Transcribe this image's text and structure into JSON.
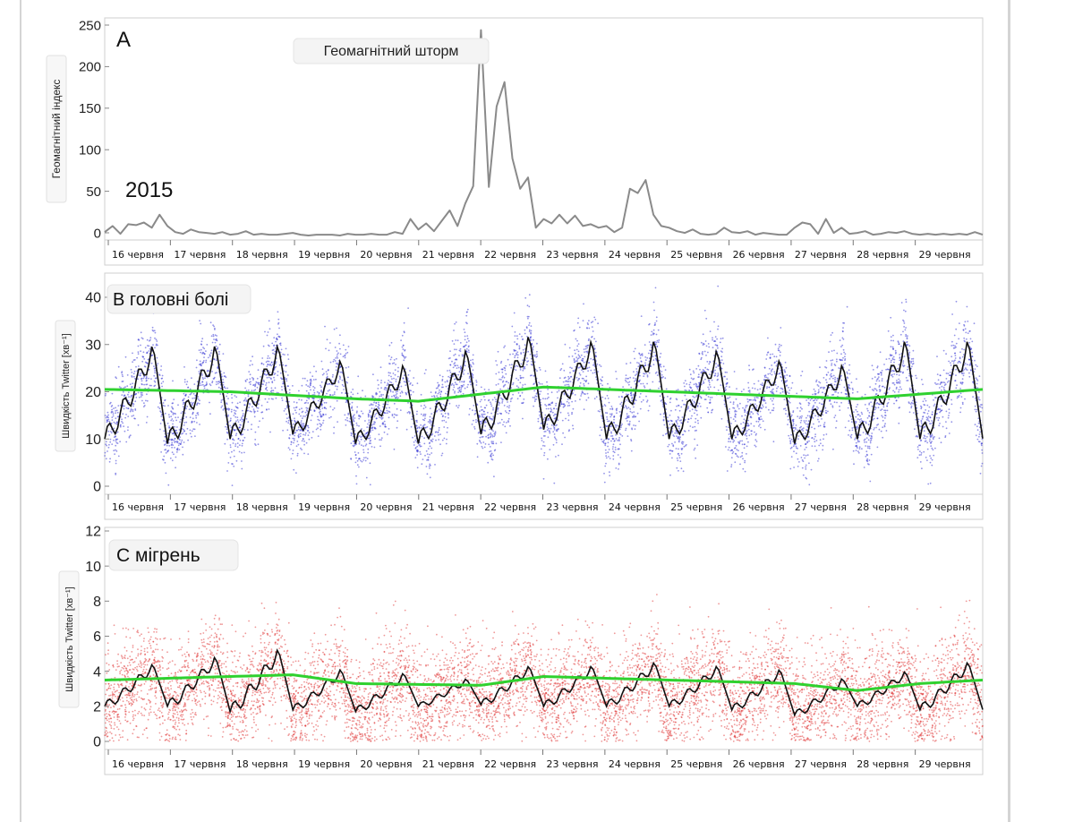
{
  "chart_data": [
    {
      "panel": "A",
      "type": "line",
      "year_label": "2015",
      "annotation": "Геомагнітний шторм",
      "ylabel": "Геомагнітний індекс",
      "ylim": [
        0,
        250
      ],
      "yticks": [
        0,
        50,
        100,
        150,
        200,
        250
      ],
      "xlim": [
        0,
        112
      ],
      "x_tick_labels": [
        "16 червня",
        "17 червня",
        "18 червня",
        "19 червня",
        "20 червня",
        "21 червня",
        "22 червня",
        "23 червня",
        "24 червня",
        "25 червня",
        "26 червня",
        "27 червня",
        "28 червня",
        "29 червня"
      ],
      "colors": {
        "line": "#8a8a8a"
      },
      "series": [
        {
          "x": [
            0,
            1,
            2,
            3,
            4,
            5,
            6,
            7,
            8,
            9,
            10,
            11,
            12,
            13,
            14,
            15,
            16,
            17,
            18,
            19,
            20,
            21,
            22,
            23,
            24,
            25,
            26,
            27,
            28,
            29,
            30,
            31,
            32,
            33,
            34,
            35,
            36,
            37,
            38,
            39,
            40,
            41,
            42,
            43,
            44,
            45,
            46,
            47,
            48,
            49,
            50,
            51,
            52,
            53,
            54,
            55,
            56,
            57,
            58,
            59,
            60,
            61,
            62,
            63,
            64,
            65,
            66,
            67,
            68,
            69,
            70,
            71,
            72,
            73,
            74,
            75,
            76,
            77,
            78,
            79,
            80,
            81,
            82,
            83,
            84,
            85,
            86,
            87,
            88,
            89,
            90,
            91,
            92,
            93,
            94,
            95,
            96,
            97,
            98,
            99,
            100,
            101,
            102,
            103,
            104,
            105,
            106,
            107,
            108,
            109,
            110,
            111,
            112
          ],
          "values": [
            5,
            12,
            3,
            14,
            13,
            16,
            10,
            25,
            12,
            5,
            3,
            8,
            5,
            4,
            3,
            5,
            2,
            3,
            6,
            2,
            3,
            2,
            2,
            3,
            4,
            2,
            1,
            2,
            2,
            2,
            1,
            3,
            2,
            2,
            3,
            2,
            2,
            5,
            3,
            20,
            8,
            15,
            6,
            18,
            30,
            12,
            38,
            58,
            238,
            57,
            150,
            178,
            90,
            55,
            68,
            10,
            20,
            15,
            25,
            15,
            24,
            12,
            14,
            10,
            12,
            5,
            10,
            55,
            50,
            65,
            25,
            12,
            10,
            6,
            4,
            8,
            3,
            2,
            3,
            10,
            5,
            4,
            6,
            2,
            4,
            3,
            2,
            2,
            10,
            16,
            14,
            3,
            20,
            4,
            10,
            3,
            4,
            6,
            2,
            3,
            5,
            4,
            6,
            3,
            2,
            3,
            2,
            3,
            2,
            3,
            2,
            5,
            2
          ]
        }
      ]
    },
    {
      "panel": "B",
      "title": "В головні болі",
      "type": "scatter",
      "ylabel": "Швидкість Twitter [хв⁻¹]",
      "ylim": [
        0,
        45
      ],
      "yticks": [
        0,
        10,
        20,
        30,
        40
      ],
      "xlim": [
        0,
        14
      ],
      "x_tick_labels": [
        "16 червня",
        "17 червня",
        "18 червня",
        "19 червня",
        "20 червня",
        "21 червня",
        "22 червня",
        "23 червня",
        "24 червня",
        "25 червня",
        "26 червня",
        "27 червня",
        "28 червня",
        "29 червня"
      ],
      "daily_peaks": [
        29,
        29,
        29,
        26,
        25,
        28,
        31,
        30,
        30,
        28,
        26,
        25,
        30,
        30
      ],
      "daily_mins": [
        10,
        9,
        10,
        11,
        9,
        9,
        11,
        12,
        10,
        10,
        10,
        9,
        10,
        10
      ],
      "trend": [
        [
          0,
          20.5
        ],
        [
          2,
          20
        ],
        [
          4,
          18.5
        ],
        [
          5,
          18
        ],
        [
          7,
          21
        ],
        [
          9,
          20
        ],
        [
          11,
          19
        ],
        [
          12,
          18.5
        ],
        [
          14,
          20.5
        ]
      ],
      "colors": {
        "points": "#3b3bd6",
        "mean": "#111111",
        "trend": "#2fd12f"
      }
    },
    {
      "panel": "C",
      "title": "С мігрень",
      "type": "scatter",
      "ylabel": "Швидкість Twitter [хв⁻¹]",
      "ylim": [
        0,
        12
      ],
      "yticks": [
        0,
        2,
        4,
        6,
        8,
        10,
        12
      ],
      "xlim": [
        0,
        14
      ],
      "x_tick_labels": [
        "16 червня",
        "17 червня",
        "18 червня",
        "19 червня",
        "20 червня",
        "21 червня",
        "22 червня",
        "23 червня",
        "24 червня",
        "25 червня",
        "26 червня",
        "27 червня",
        "28 червня",
        "29 червня"
      ],
      "daily_peaks": [
        4.3,
        4.7,
        5.1,
        4,
        3.8,
        3.5,
        4.2,
        4.2,
        4.4,
        4.2,
        4,
        3.5,
        3.9,
        4.4
      ],
      "daily_mins": [
        2,
        2,
        1.7,
        1.8,
        1.7,
        2,
        2.1,
        2,
        2,
        2,
        1.8,
        1.5,
        2,
        1.8
      ],
      "trend": [
        [
          0,
          3.5
        ],
        [
          2,
          3.7
        ],
        [
          3,
          3.8
        ],
        [
          4,
          3.3
        ],
        [
          6,
          3.2
        ],
        [
          7,
          3.7
        ],
        [
          9,
          3.5
        ],
        [
          11,
          3.3
        ],
        [
          12,
          2.9
        ],
        [
          13,
          3.3
        ],
        [
          14,
          3.5
        ]
      ],
      "colors": {
        "points": "#e03030",
        "mean": "#111111",
        "trend": "#2fd12f"
      }
    }
  ]
}
